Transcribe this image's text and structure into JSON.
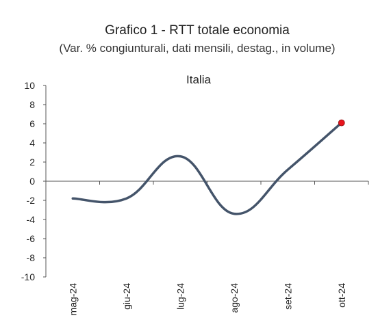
{
  "chart_data": {
    "type": "line",
    "title": "Grafico 1 - RTT totale economia",
    "subtitle": "(Var. % congiunturali, dati mensili, destag., in volume)",
    "panel_label": "Italia",
    "categories": [
      "mag-24",
      "giu-24",
      "lug-24",
      "ago-24",
      "set-24",
      "ott-24"
    ],
    "series": [
      {
        "values": [
          -1.8,
          -1.8,
          2.6,
          -3.4,
          1.2,
          6.1
        ]
      }
    ],
    "y_ticks": [
      "10",
      "8",
      "6",
      "4",
      "2",
      "0",
      "-2",
      "-4",
      "-6",
      "-8",
      "-10"
    ],
    "ylim": [
      -10,
      10
    ],
    "line_color": "#44546a",
    "marker_color": "#e8141c",
    "grid": false
  }
}
